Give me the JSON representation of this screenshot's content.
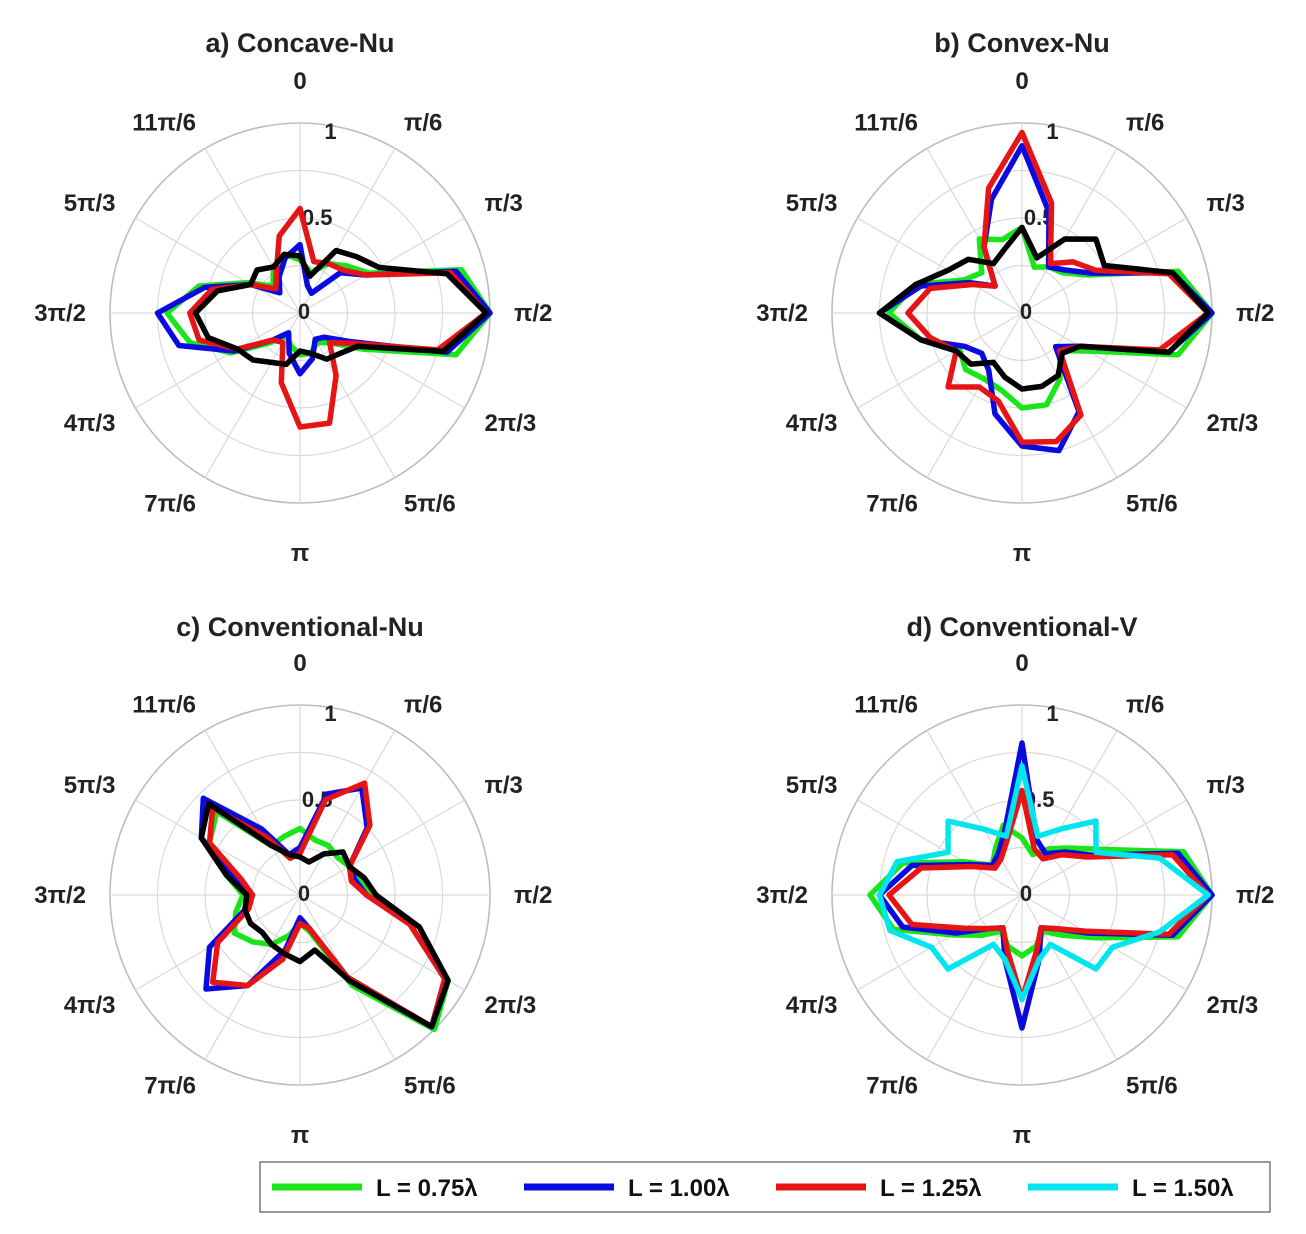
{
  "chart_data": [
    {
      "type": "polar",
      "title": "a) Concave-Nu",
      "theta_ticks": [
        "0",
        "π/6",
        "π/3",
        "π/2",
        "2π/3",
        "5π/6",
        "π",
        "7π/6",
        "4π/3",
        "3π/2",
        "5π/3",
        "11π/6"
      ],
      "r_ticks": [
        "0",
        "0.5",
        "1"
      ],
      "rlim": [
        0,
        1
      ],
      "series": [
        {
          "name": "L = 0.75λ",
          "color": "#19e619",
          "theta_deg": [
            0,
            15,
            30,
            45,
            60,
            75,
            90,
            105,
            120,
            135,
            150,
            165,
            180,
            195,
            210,
            225,
            240,
            255,
            270,
            285,
            300,
            315,
            330,
            345
          ],
          "r": [
            0.28,
            0.22,
            0.3,
            0.35,
            0.42,
            0.88,
            1.0,
            0.85,
            0.38,
            0.22,
            0.18,
            0.22,
            0.22,
            0.18,
            0.14,
            0.22,
            0.42,
            0.6,
            0.7,
            0.55,
            0.32,
            0.2,
            0.28,
            0.32
          ]
        },
        {
          "name": "L = 1.00λ",
          "color": "#0a0ae0",
          "theta_deg": [
            0,
            15,
            30,
            45,
            60,
            75,
            90,
            105,
            120,
            135,
            150,
            165,
            180,
            195,
            210,
            225,
            240,
            255,
            270,
            285,
            300,
            315,
            330,
            345
          ],
          "r": [
            0.36,
            0.15,
            0.12,
            0.3,
            0.4,
            0.85,
            1.0,
            0.8,
            0.3,
            0.18,
            0.16,
            0.25,
            0.32,
            0.22,
            0.12,
            0.2,
            0.4,
            0.66,
            0.75,
            0.52,
            0.3,
            0.15,
            0.22,
            0.3
          ]
        },
        {
          "name": "L = 1.25λ",
          "color": "#e61414",
          "theta_deg": [
            0,
            15,
            30,
            45,
            60,
            75,
            90,
            105,
            120,
            135,
            150,
            165,
            180,
            195,
            210,
            225,
            240,
            255,
            270,
            285,
            300,
            315,
            330,
            345
          ],
          "r": [
            0.55,
            0.28,
            0.3,
            0.32,
            0.4,
            0.82,
            0.98,
            0.75,
            0.32,
            0.22,
            0.38,
            0.6,
            0.6,
            0.38,
            0.18,
            0.2,
            0.38,
            0.55,
            0.58,
            0.48,
            0.3,
            0.18,
            0.25,
            0.42
          ]
        },
        {
          "name": "L = 1.50λ",
          "color": "#000000",
          "theta_deg": [
            0,
            15,
            30,
            45,
            60,
            75,
            90,
            105,
            120,
            135,
            150,
            165,
            180,
            195,
            210,
            225,
            240,
            255,
            270,
            285,
            300,
            315,
            330,
            345
          ],
          "r": [
            0.3,
            0.2,
            0.38,
            0.42,
            0.48,
            0.8,
            0.98,
            0.78,
            0.35,
            0.3,
            0.28,
            0.22,
            0.2,
            0.28,
            0.3,
            0.35,
            0.38,
            0.5,
            0.55,
            0.45,
            0.3,
            0.32,
            0.28,
            0.32
          ]
        }
      ]
    },
    {
      "type": "polar",
      "title": "b) Convex-Nu",
      "theta_ticks": [
        "0",
        "π/6",
        "π/3",
        "π/2",
        "2π/3",
        "5π/6",
        "π",
        "7π/6",
        "4π/3",
        "3π/2",
        "5π/3",
        "11π/6"
      ],
      "r_ticks": [
        "0",
        "0.5",
        "1"
      ],
      "rlim": [
        0,
        1
      ],
      "series": [
        {
          "name": "L = 0.75λ",
          "color": "#19e619",
          "theta_deg": [
            0,
            15,
            30,
            45,
            60,
            75,
            90,
            105,
            120,
            135,
            150,
            165,
            180,
            195,
            210,
            225,
            240,
            255,
            270,
            285,
            300,
            315,
            330,
            345
          ],
          "r": [
            0.45,
            0.25,
            0.28,
            0.3,
            0.4,
            0.85,
            1.0,
            0.85,
            0.4,
            0.28,
            0.4,
            0.5,
            0.5,
            0.42,
            0.4,
            0.42,
            0.38,
            0.55,
            0.7,
            0.58,
            0.35,
            0.3,
            0.45,
            0.4
          ]
        },
        {
          "name": "L = 1.00λ",
          "color": "#0a0ae0",
          "theta_deg": [
            0,
            15,
            30,
            45,
            60,
            75,
            90,
            105,
            120,
            135,
            150,
            165,
            180,
            195,
            210,
            225,
            240,
            255,
            270,
            285,
            300,
            315,
            330,
            345
          ],
          "r": [
            0.88,
            0.55,
            0.28,
            0.32,
            0.42,
            0.82,
            1.0,
            0.8,
            0.35,
            0.25,
            0.6,
            0.75,
            0.7,
            0.55,
            0.35,
            0.3,
            0.35,
            0.55,
            0.75,
            0.55,
            0.32,
            0.2,
            0.4,
            0.62
          ]
        },
        {
          "name": "L = 1.25λ",
          "color": "#e61414",
          "theta_deg": [
            0,
            15,
            30,
            45,
            60,
            75,
            90,
            105,
            120,
            135,
            150,
            165,
            180,
            195,
            210,
            225,
            240,
            255,
            270,
            285,
            300,
            315,
            330,
            345
          ],
          "r": [
            0.95,
            0.6,
            0.3,
            0.38,
            0.45,
            0.8,
            0.98,
            0.75,
            0.35,
            0.28,
            0.62,
            0.7,
            0.68,
            0.48,
            0.45,
            0.55,
            0.4,
            0.5,
            0.6,
            0.5,
            0.3,
            0.2,
            0.4,
            0.68
          ]
        },
        {
          "name": "L = 1.50λ",
          "color": "#000000",
          "theta_deg": [
            0,
            15,
            30,
            45,
            60,
            75,
            90,
            105,
            120,
            135,
            150,
            165,
            180,
            195,
            210,
            225,
            240,
            255,
            270,
            285,
            300,
            315,
            330,
            345
          ],
          "r": [
            0.45,
            0.3,
            0.45,
            0.55,
            0.5,
            0.82,
            0.98,
            0.8,
            0.35,
            0.3,
            0.38,
            0.4,
            0.4,
            0.35,
            0.3,
            0.38,
            0.4,
            0.55,
            0.75,
            0.58,
            0.45,
            0.4,
            0.3,
            0.35
          ]
        }
      ]
    },
    {
      "type": "polar",
      "title": "c) Conventional-Nu",
      "theta_ticks": [
        "0",
        "π/6",
        "π/3",
        "π/2",
        "2π/3",
        "5π/6",
        "π",
        "7π/6",
        "4π/3",
        "3π/2",
        "5π/3",
        "11π/6"
      ],
      "r_ticks": [
        "0",
        "0.5",
        "1"
      ],
      "rlim": [
        0,
        1
      ],
      "series": [
        {
          "name": "L = 0.75λ",
          "color": "#19e619",
          "theta_deg": [
            0,
            15,
            30,
            45,
            60,
            75,
            90,
            105,
            120,
            135,
            150,
            165,
            180,
            195,
            210,
            225,
            240,
            255,
            270,
            285,
            300,
            315,
            330,
            345
          ],
          "r": [
            0.35,
            0.3,
            0.3,
            0.28,
            0.3,
            0.32,
            0.38,
            0.65,
            0.9,
            1.0,
            0.55,
            0.2,
            0.15,
            0.22,
            0.3,
            0.35,
            0.4,
            0.35,
            0.3,
            0.4,
            0.55,
            0.62,
            0.3,
            0.32
          ]
        },
        {
          "name": "L = 1.00λ",
          "color": "#0a0ae0",
          "theta_deg": [
            0,
            15,
            30,
            45,
            60,
            75,
            90,
            105,
            120,
            135,
            150,
            165,
            180,
            195,
            210,
            225,
            240,
            255,
            270,
            285,
            300,
            315,
            330,
            345
          ],
          "r": [
            0.25,
            0.55,
            0.65,
            0.5,
            0.3,
            0.3,
            0.35,
            0.6,
            0.88,
            0.98,
            0.5,
            0.18,
            0.12,
            0.3,
            0.55,
            0.7,
            0.55,
            0.3,
            0.25,
            0.35,
            0.6,
            0.72,
            0.4,
            0.22
          ]
        },
        {
          "name": "L = 1.25λ",
          "color": "#e61414",
          "theta_deg": [
            0,
            15,
            30,
            45,
            60,
            75,
            90,
            105,
            120,
            135,
            150,
            165,
            180,
            195,
            210,
            225,
            240,
            255,
            270,
            285,
            300,
            315,
            330,
            345
          ],
          "r": [
            0.22,
            0.52,
            0.68,
            0.52,
            0.3,
            0.28,
            0.35,
            0.6,
            0.88,
            0.98,
            0.5,
            0.18,
            0.15,
            0.35,
            0.55,
            0.65,
            0.5,
            0.28,
            0.25,
            0.32,
            0.55,
            0.65,
            0.35,
            0.2
          ]
        },
        {
          "name": "L = 1.50λ",
          "color": "#000000",
          "theta_deg": [
            0,
            15,
            30,
            45,
            60,
            75,
            90,
            105,
            120,
            135,
            150,
            165,
            180,
            195,
            210,
            225,
            240,
            255,
            270,
            285,
            300,
            315,
            330,
            345
          ],
          "r": [
            0.2,
            0.18,
            0.25,
            0.32,
            0.3,
            0.35,
            0.4,
            0.65,
            0.9,
            0.98,
            0.52,
            0.3,
            0.35,
            0.32,
            0.3,
            0.28,
            0.3,
            0.3,
            0.28,
            0.4,
            0.6,
            0.68,
            0.3,
            0.22
          ]
        }
      ]
    },
    {
      "type": "polar",
      "title": "d) Conventional-V",
      "theta_ticks": [
        "0",
        "π/6",
        "π/3",
        "π/2",
        "2π/3",
        "5π/6",
        "π",
        "7π/6",
        "4π/3",
        "3π/2",
        "5π/3",
        "11π/6"
      ],
      "r_ticks": [
        "0",
        "0.5",
        "1"
      ],
      "rlim": [
        0,
        1
      ],
      "series": [
        {
          "name": "L = 0.75λ",
          "color": "#19e619",
          "theta_deg": [
            0,
            15,
            30,
            45,
            60,
            75,
            90,
            105,
            120,
            135,
            150,
            165,
            180,
            195,
            210,
            225,
            240,
            255,
            270,
            285,
            300,
            315,
            330,
            345
          ],
          "r": [
            0.3,
            0.22,
            0.28,
            0.35,
            0.48,
            0.88,
            1.0,
            0.85,
            0.45,
            0.3,
            0.22,
            0.28,
            0.32,
            0.28,
            0.22,
            0.3,
            0.42,
            0.7,
            0.8,
            0.65,
            0.35,
            0.22,
            0.28,
            0.38
          ]
        },
        {
          "name": "L = 1.00λ",
          "color": "#0a0ae0",
          "theta_deg": [
            0,
            15,
            30,
            45,
            60,
            75,
            90,
            105,
            120,
            135,
            150,
            165,
            180,
            195,
            210,
            225,
            240,
            255,
            270,
            285,
            300,
            315,
            330,
            345
          ],
          "r": [
            0.8,
            0.3,
            0.25,
            0.32,
            0.42,
            0.85,
            1.0,
            0.82,
            0.4,
            0.25,
            0.2,
            0.35,
            0.7,
            0.35,
            0.2,
            0.25,
            0.4,
            0.65,
            0.75,
            0.6,
            0.32,
            0.22,
            0.25,
            0.35
          ]
        },
        {
          "name": "L = 1.25λ",
          "color": "#e61414",
          "theta_deg": [
            0,
            15,
            30,
            45,
            60,
            75,
            90,
            105,
            120,
            135,
            150,
            165,
            180,
            195,
            210,
            225,
            240,
            255,
            270,
            285,
            300,
            315,
            330,
            345
          ],
          "r": [
            0.55,
            0.25,
            0.22,
            0.3,
            0.4,
            0.82,
            0.98,
            0.8,
            0.38,
            0.25,
            0.2,
            0.3,
            0.55,
            0.3,
            0.2,
            0.25,
            0.35,
            0.6,
            0.7,
            0.55,
            0.3,
            0.2,
            0.22,
            0.3
          ]
        },
        {
          "name": "L = 1.50λ",
          "color": "#00e5ee",
          "theta_deg": [
            0,
            15,
            30,
            45,
            60,
            75,
            90,
            105,
            120,
            135,
            150,
            165,
            180,
            195,
            210,
            225,
            240,
            255,
            270,
            285,
            300,
            315,
            330,
            345
          ],
          "r": [
            0.68,
            0.32,
            0.4,
            0.55,
            0.45,
            0.75,
            0.98,
            0.75,
            0.55,
            0.55,
            0.3,
            0.35,
            0.55,
            0.35,
            0.3,
            0.55,
            0.55,
            0.72,
            0.75,
            0.68,
            0.45,
            0.55,
            0.4,
            0.32
          ]
        }
      ]
    }
  ],
  "legend": {
    "placement": "bottom-right",
    "entries": [
      {
        "label": "L = 0.75λ",
        "color": "#19e619"
      },
      {
        "label": "L = 1.00λ",
        "color": "#0a0ae0"
      },
      {
        "label": "L = 1.25λ",
        "color": "#e61414"
      },
      {
        "label": "L = 1.50λ",
        "color": "#00e5ee"
      }
    ]
  }
}
